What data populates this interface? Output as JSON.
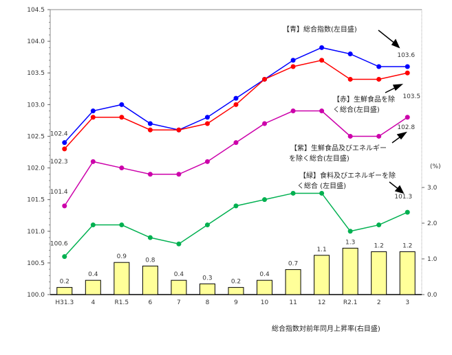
{
  "chart_data": {
    "type": "bar+line",
    "categories": [
      "H31.3",
      "4",
      "R1.5",
      "6",
      "7",
      "8",
      "9",
      "10",
      "11",
      "12",
      "R2.1",
      "2",
      "3"
    ],
    "left_axis": {
      "ylim": [
        100.0,
        104.5
      ],
      "ticks": [
        "100.0",
        "100.5",
        "101.0",
        "101.5",
        "102.0",
        "102.5",
        "103.0",
        "103.5",
        "104.0",
        "104.5"
      ]
    },
    "right_axis": {
      "ylim": [
        0.0,
        7.9
      ],
      "ticks": [
        "0.0",
        "1.0",
        "2.0",
        "3.0"
      ],
      "unit_label": "(%)"
    },
    "series": [
      {
        "name": "【青】総合指数(左目盛)",
        "color": "#0000ff",
        "axis": "left",
        "values": [
          102.4,
          102.9,
          103.0,
          102.7,
          102.6,
          102.8,
          103.1,
          103.4,
          103.7,
          103.9,
          103.8,
          103.6,
          103.6
        ],
        "start_label": "102.4",
        "end_label": "103.6"
      },
      {
        "name_lines": [
          "【赤】生鮮食品を除",
          "く総合(左目盛)"
        ],
        "color": "#ff0000",
        "axis": "left",
        "values": [
          102.3,
          102.8,
          102.8,
          102.6,
          102.6,
          102.7,
          103.0,
          103.4,
          103.6,
          103.7,
          103.4,
          103.4,
          103.5
        ],
        "start_label": "102.3",
        "end_label": "103.5"
      },
      {
        "name_lines": [
          "【紫】生鮮食品及びエネルギー",
          "を除く総合(左目盛)"
        ],
        "color": "#cc00aa",
        "axis": "left",
        "values": [
          101.4,
          102.1,
          102.0,
          101.9,
          101.9,
          102.1,
          102.4,
          102.7,
          102.9,
          102.9,
          102.5,
          102.5,
          102.8
        ],
        "start_label": "101.4",
        "end_label": "102.8"
      },
      {
        "name_lines": [
          "【緑】食料及びエネルギーを除",
          "く総合 (左目盛)"
        ],
        "color": "#00b050",
        "axis": "left",
        "values": [
          100.6,
          101.1,
          101.1,
          100.9,
          100.8,
          101.1,
          101.4,
          101.5,
          101.6,
          101.6,
          101.0,
          101.1,
          101.3
        ],
        "start_label": "100.6",
        "end_label": "101.3"
      },
      {
        "name": "総合指数対前年同月上昇率(右目盛)",
        "type": "bar",
        "color": "#ffff99",
        "axis": "right",
        "values": [
          0.2,
          0.4,
          0.9,
          0.8,
          0.4,
          0.3,
          0.2,
          0.4,
          0.7,
          1.1,
          1.3,
          1.2,
          1.2
        ],
        "labels": [
          "0.2",
          "0.4",
          "0.9",
          "0.8",
          "0.4",
          "0.3",
          "0.2",
          "0.4",
          "0.7",
          "1.1",
          "1.3",
          "1.2",
          "1.2"
        ]
      }
    ]
  }
}
